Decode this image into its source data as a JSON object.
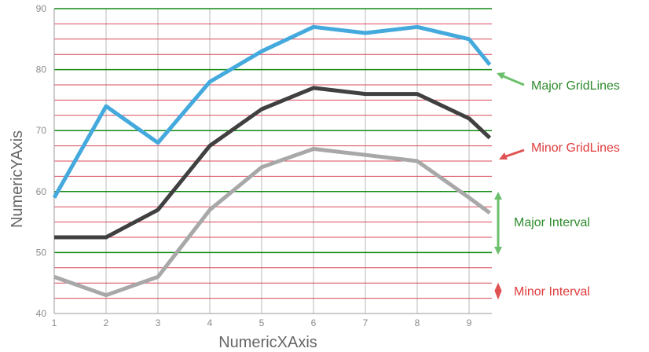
{
  "chart_data": {
    "type": "line",
    "xlabel": "NumericXAxis",
    "ylabel": "NumericYAxis",
    "xlim": [
      1,
      9.4
    ],
    "ylim": [
      40,
      90
    ],
    "x_ticks": [
      "1",
      "2",
      "3",
      "4",
      "5",
      "6",
      "7",
      "8",
      "9"
    ],
    "y_ticks": [
      "40",
      "50",
      "60",
      "70",
      "80",
      "90"
    ],
    "y_major_interval": 10,
    "y_minor_interval": 2.5,
    "grid": true,
    "series": [
      {
        "color": "#44a9dc",
        "x": [
          1,
          2,
          3,
          4,
          5,
          6,
          7,
          8,
          9,
          9.4
        ],
        "values": [
          59,
          74,
          68,
          78,
          83,
          87,
          86,
          87,
          85,
          80.8
        ]
      },
      {
        "color": "#404040",
        "x": [
          1,
          2,
          3,
          4,
          5,
          6,
          7,
          8,
          9,
          9.4
        ],
        "values": [
          52.5,
          52.5,
          57,
          67.5,
          73.5,
          77,
          76,
          76,
          72,
          68.8
        ]
      },
      {
        "color": "#a8a8a8",
        "x": [
          1,
          2,
          3,
          4,
          5,
          6,
          7,
          8,
          9,
          9.4
        ],
        "values": [
          46,
          43,
          46,
          57,
          64,
          67,
          66,
          65,
          59,
          56.5
        ]
      }
    ],
    "annotations": [
      {
        "label": "Major GridLines",
        "color": "#2e8b2e"
      },
      {
        "label": "Minor GridLines",
        "color": "#e03c3c"
      },
      {
        "label": "Major Interval",
        "color": "#2e8b2e"
      },
      {
        "label": "Minor Interval",
        "color": "#e03c3c"
      }
    ],
    "colors": {
      "major_grid": "#138a13",
      "minor_grid": "#d94a5a",
      "vertical_grid": "#b8b8b8",
      "major_arrow": "#6cbf6c",
      "minor_arrow": "#e05252"
    }
  }
}
